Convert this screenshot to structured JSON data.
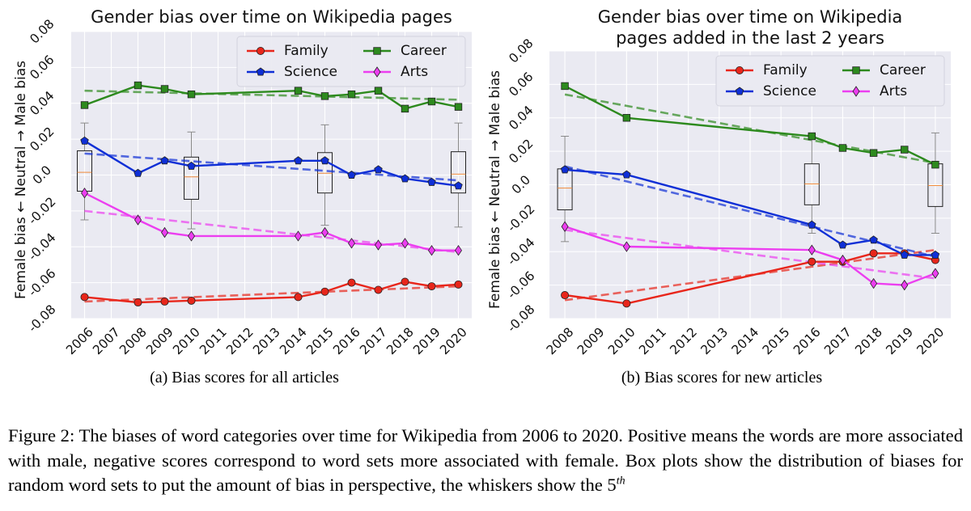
{
  "chart_data": [
    {
      "type": "line",
      "title": "Gender bias over time on Wikipedia pages",
      "ylabel": "Female bias ← Neutral → Male bias",
      "xlabel": "",
      "ylim": [
        -0.08,
        0.08
      ],
      "yticks": [
        "0.08",
        "0.06",
        "0.04",
        "0.02",
        "0.0",
        "-0.02",
        "-0.04",
        "-0.06",
        "-0.08"
      ],
      "ytick_values": [
        0.08,
        0.06,
        0.04,
        0.02,
        0.0,
        -0.02,
        -0.04,
        -0.06,
        -0.08
      ],
      "xticks": [
        "2006",
        "2007",
        "2008",
        "2009",
        "2010",
        "2011",
        "2012",
        "2013",
        "2014",
        "2015",
        "2016",
        "2017",
        "2018",
        "2019",
        "2020"
      ],
      "x_categories": [
        2006,
        2007,
        2008,
        2009,
        2010,
        2011,
        2012,
        2013,
        2014,
        2015,
        2016,
        2017,
        2018,
        2019,
        2020
      ],
      "grid": true,
      "legend": "top-right",
      "series": [
        {
          "name": "Family",
          "color": "#e8261b",
          "marker": "circle",
          "x": [
            2006,
            2008,
            2009,
            2010,
            2014,
            2015,
            2016,
            2017,
            2018,
            2019,
            2020
          ],
          "y": [
            -0.068,
            -0.071,
            -0.0705,
            -0.07,
            -0.068,
            -0.065,
            -0.06,
            -0.064,
            -0.0595,
            -0.062,
            -0.061
          ],
          "trend": [
            -0.0705,
            -0.062
          ]
        },
        {
          "name": "Career",
          "color": "#2d8a1e",
          "marker": "square",
          "x": [
            2006,
            2008,
            2009,
            2010,
            2014,
            2015,
            2016,
            2017,
            2018,
            2019,
            2020
          ],
          "y": [
            0.039,
            0.05,
            0.048,
            0.045,
            0.047,
            0.044,
            0.045,
            0.047,
            0.037,
            0.041,
            0.038
          ],
          "trend": [
            0.047,
            0.042
          ]
        },
        {
          "name": "Science",
          "color": "#0f2fd6",
          "marker": "pentagon",
          "x": [
            2006,
            2008,
            2009,
            2010,
            2014,
            2015,
            2016,
            2017,
            2018,
            2019,
            2020
          ],
          "y": [
            0.019,
            0.001,
            0.008,
            0.005,
            0.008,
            0.008,
            0.0,
            0.003,
            -0.002,
            -0.004,
            -0.006
          ],
          "trend": [
            0.012,
            -0.003
          ]
        },
        {
          "name": "Arts",
          "color": "#ec3ef0",
          "marker": "diamond",
          "x": [
            2006,
            2008,
            2009,
            2010,
            2014,
            2015,
            2016,
            2017,
            2018,
            2019,
            2020
          ],
          "y": [
            -0.01,
            -0.025,
            -0.032,
            -0.034,
            -0.034,
            -0.032,
            -0.038,
            -0.039,
            -0.038,
            -0.042,
            -0.042
          ],
          "trend": [
            -0.02,
            -0.043
          ]
        }
      ],
      "boxes": [
        {
          "x": 2006,
          "q1": -0.009,
          "median": 0.0015,
          "q3": 0.0135,
          "low": -0.025,
          "high": 0.029
        },
        {
          "x": 2010,
          "q1": -0.0135,
          "median": -0.001,
          "q3": 0.01,
          "low": -0.03,
          "high": 0.024
        },
        {
          "x": 2015,
          "q1": -0.01,
          "median": 0.001,
          "q3": 0.0125,
          "low": -0.028,
          "high": 0.028
        },
        {
          "x": 2020,
          "q1": -0.01,
          "median": 0.0005,
          "q3": 0.013,
          "low": -0.029,
          "high": 0.029
        }
      ]
    },
    {
      "type": "line",
      "title": "Gender bias over time on Wikipedia\npages added in the last 2 years",
      "ylabel": "Female bias ← Neutral → Male bias",
      "xlabel": "",
      "ylim": [
        -0.08,
        0.08
      ],
      "yticks": [
        "0.08",
        "0.06",
        "0.04",
        "0.02",
        "0.0",
        "-0.02",
        "-0.04",
        "-0.06",
        "-0.08"
      ],
      "ytick_values": [
        0.08,
        0.06,
        0.04,
        0.02,
        0.0,
        -0.02,
        -0.04,
        -0.06,
        -0.08
      ],
      "xticks": [
        "2008",
        "2009",
        "2010",
        "2011",
        "2012",
        "2013",
        "2014",
        "2015",
        "2016",
        "2017",
        "2018",
        "2019",
        "2020"
      ],
      "x_categories": [
        2008,
        2009,
        2010,
        2011,
        2012,
        2013,
        2014,
        2015,
        2016,
        2017,
        2018,
        2019,
        2020
      ],
      "grid": true,
      "legend": "top-right",
      "series": [
        {
          "name": "Family",
          "color": "#e8261b",
          "marker": "circle",
          "x": [
            2008,
            2010,
            2016,
            2017,
            2018,
            2019,
            2020
          ],
          "y": [
            -0.066,
            -0.071,
            -0.046,
            -0.046,
            -0.041,
            -0.041,
            -0.045
          ],
          "trend": [
            -0.069,
            -0.039
          ]
        },
        {
          "name": "Career",
          "color": "#2d8a1e",
          "marker": "square",
          "x": [
            2008,
            2010,
            2016,
            2017,
            2018,
            2019,
            2020
          ],
          "y": [
            0.059,
            0.04,
            0.029,
            0.022,
            0.019,
            0.021,
            0.012
          ],
          "trend": [
            0.054,
            0.013
          ]
        },
        {
          "name": "Science",
          "color": "#0f2fd6",
          "marker": "pentagon",
          "x": [
            2008,
            2010,
            2016,
            2017,
            2018,
            2019,
            2020
          ],
          "y": [
            0.009,
            0.006,
            -0.024,
            -0.036,
            -0.033,
            -0.042,
            -0.042
          ],
          "trend": [
            0.011,
            -0.043
          ]
        },
        {
          "name": "Arts",
          "color": "#ec3ef0",
          "marker": "diamond",
          "x": [
            2008,
            2010,
            2016,
            2017,
            2018,
            2019,
            2020
          ],
          "y": [
            -0.025,
            -0.037,
            -0.039,
            -0.045,
            -0.059,
            -0.06,
            -0.053
          ],
          "trend": [
            -0.027,
            -0.056
          ]
        }
      ],
      "boxes": [
        {
          "x": 2008,
          "q1": -0.015,
          "median": -0.002,
          "q3": 0.0095,
          "low": -0.034,
          "high": 0.029
        },
        {
          "x": 2016,
          "q1": -0.012,
          "median": 0.0005,
          "q3": 0.0125,
          "low": -0.029,
          "high": 0.03
        },
        {
          "x": 2020,
          "q1": -0.013,
          "median": -0.0005,
          "q3": 0.0125,
          "low": -0.029,
          "high": 0.031
        }
      ]
    }
  ],
  "subcaptions": {
    "a": "(a) Bias scores for all articles",
    "b": "(b) Bias scores for new articles"
  },
  "caption": {
    "text": "Figure 2: The biases of word categories over time for Wikipedia from 2006 to 2020. Positive means the words are more associated with male, negative scores correspond to word sets more associated with female. Box plots show the distribution of biases for random word sets to put the amount of bias in perspective, the whiskers show the 5",
    "superscript": "th"
  }
}
